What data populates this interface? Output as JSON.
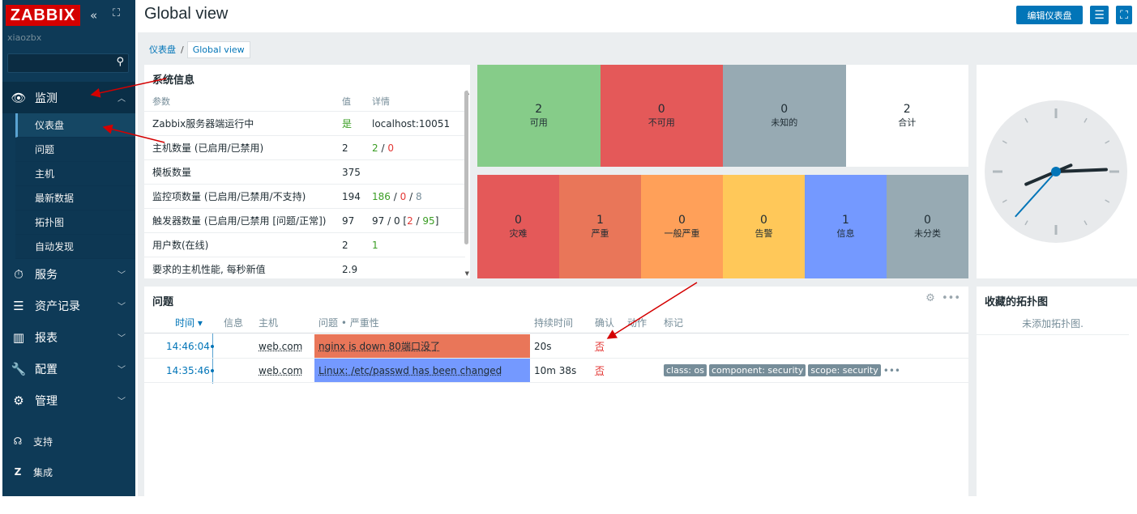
{
  "app": {
    "logo": "ZABBIX",
    "server_name": "xiaozbx",
    "collapse_icon": "double-chevron-left-icon",
    "kiosk_icon": "square-icon"
  },
  "sidebar": {
    "search_icon": "search-icon",
    "menu": [
      {
        "label": "监测",
        "icon": "eye-icon",
        "expanded": true
      },
      {
        "label": "服务",
        "icon": "stopwatch-icon"
      },
      {
        "label": "资产记录",
        "icon": "list-icon"
      },
      {
        "label": "报表",
        "icon": "bar-chart-icon"
      },
      {
        "label": "配置",
        "icon": "wrench-icon"
      },
      {
        "label": "管理",
        "icon": "gear-icon"
      }
    ],
    "submenu": [
      "仪表盘",
      "问题",
      "主机",
      "最新数据",
      "拓扑图",
      "自动发现"
    ],
    "bottom": [
      {
        "label": "支持",
        "icon": "headset-icon"
      },
      {
        "label": "集成",
        "icon": "z-icon"
      }
    ]
  },
  "header": {
    "title": "Global view",
    "edit_button": "编辑仪表盘",
    "menu_icon": "hamburger-icon",
    "fullscreen_icon": "fullscreen-icon"
  },
  "breadcrumb": {
    "parent": "仪表盘",
    "separator": "/",
    "current": "Global view"
  },
  "system_info": {
    "title": "系统信息",
    "headers": [
      "参数",
      "值",
      "详情"
    ],
    "rows": [
      {
        "param": "Zabbix服务器端运行中",
        "value": "是",
        "details": "localhost:10051"
      },
      {
        "param": "主机数量 (已启用/已禁用)",
        "value": "2",
        "d1": "2",
        "sep": "/",
        "d2": "0"
      },
      {
        "param": "模板数量",
        "value": "375"
      },
      {
        "param": "监控项数量 (已启用/已禁用/不支持)",
        "value": "194",
        "d1": "186",
        "s1": "/",
        "d2": "0",
        "s2": "/",
        "d3": "8"
      },
      {
        "param": "触发器数量 (已启用/已禁用 [问题/正常])",
        "value": "97",
        "d1": "97 / 0 [",
        "d2": "2",
        "sep": "/",
        "d3": "95",
        "end": "]"
      },
      {
        "param": "用户数(在线)",
        "value": "2",
        "details": "1"
      },
      {
        "param": "要求的主机性能, 每秒新值",
        "value": "2.9"
      }
    ]
  },
  "host_availability": [
    {
      "count": "2",
      "label": "可用",
      "color": "#86cc89"
    },
    {
      "count": "0",
      "label": "不可用",
      "color": "#e45959"
    },
    {
      "count": "0",
      "label": "未知的",
      "color": "#97aab3"
    },
    {
      "count": "2",
      "label": "合计",
      "color": "#ffffff"
    }
  ],
  "severity": [
    {
      "count": "0",
      "label": "灾难",
      "color": "#e45959"
    },
    {
      "count": "1",
      "label": "严重",
      "color": "#e97659"
    },
    {
      "count": "0",
      "label": "一般严重",
      "color": "#ffa059"
    },
    {
      "count": "0",
      "label": "告警",
      "color": "#ffc859"
    },
    {
      "count": "1",
      "label": "信息",
      "color": "#7499ff"
    },
    {
      "count": "0",
      "label": "未分类",
      "color": "#97aab3"
    }
  ],
  "clock": {
    "hour": 8,
    "minute": 14,
    "second": 37
  },
  "problems": {
    "title": "问题",
    "gear_icon": "gear-icon",
    "more_icon": "ellipsis-icon",
    "headers": {
      "time": "时间 ▾",
      "info": "信息",
      "host": "主机",
      "problem": "问题 • 严重性",
      "duration": "持续时间",
      "ack": "确认",
      "actions": "动作",
      "tags": "标记"
    },
    "rows": [
      {
        "time": "14:46:04",
        "host": "web.com",
        "problem": "nginx is down 80端口没了",
        "severity_color": "#e97659",
        "duration": "20s",
        "ack": "否",
        "tags": []
      },
      {
        "time": "14:35:46",
        "host": "web.com",
        "problem": "Linux: /etc/passwd has been changed",
        "severity_color": "#7499ff",
        "duration": "10m 38s",
        "ack": "否",
        "tags": [
          "class: os",
          "component: security",
          "scope: security"
        ],
        "more": "•••"
      }
    ]
  },
  "fav_maps": {
    "title": "收藏的拓扑图",
    "empty": "未添加拓扑图."
  },
  "annotation_color": "#d40000"
}
